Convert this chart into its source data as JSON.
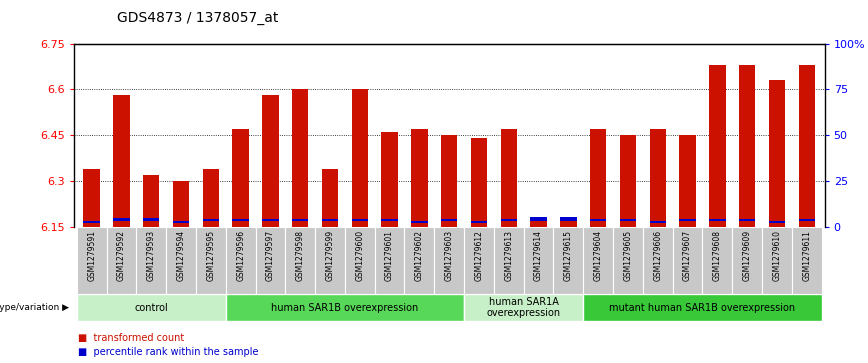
{
  "title": "GDS4873 / 1378057_at",
  "samples": [
    "GSM1279591",
    "GSM1279592",
    "GSM1279593",
    "GSM1279594",
    "GSM1279595",
    "GSM1279596",
    "GSM1279597",
    "GSM1279598",
    "GSM1279599",
    "GSM1279600",
    "GSM1279601",
    "GSM1279602",
    "GSM1279603",
    "GSM1279612",
    "GSM1279613",
    "GSM1279614",
    "GSM1279615",
    "GSM1279604",
    "GSM1279605",
    "GSM1279606",
    "GSM1279607",
    "GSM1279608",
    "GSM1279609",
    "GSM1279610",
    "GSM1279611"
  ],
  "red_values": [
    6.34,
    6.58,
    6.32,
    6.3,
    6.34,
    6.47,
    6.58,
    6.6,
    6.34,
    6.6,
    6.46,
    6.47,
    6.45,
    6.44,
    6.47,
    6.17,
    6.17,
    6.47,
    6.45,
    6.47,
    6.45,
    6.68,
    6.68,
    6.63,
    6.68
  ],
  "blue_heights": [
    0.008,
    0.008,
    0.008,
    0.008,
    0.008,
    0.008,
    0.008,
    0.008,
    0.008,
    0.008,
    0.008,
    0.008,
    0.008,
    0.008,
    0.008,
    0.015,
    0.015,
    0.008,
    0.008,
    0.008,
    0.008,
    0.008,
    0.008,
    0.008,
    0.008
  ],
  "blue_bottoms": [
    6.162,
    6.17,
    6.17,
    6.162,
    6.168,
    6.168,
    6.168,
    6.168,
    6.168,
    6.168,
    6.168,
    6.162,
    6.168,
    6.162,
    6.168,
    6.168,
    6.168,
    6.168,
    6.168,
    6.162,
    6.168,
    6.168,
    6.168,
    6.162,
    6.168
  ],
  "y_min": 6.15,
  "y_max": 6.75,
  "y_ticks_left": [
    6.15,
    6.3,
    6.45,
    6.6,
    6.75
  ],
  "y_ticks_right_labels": [
    "0",
    "25",
    "50",
    "75",
    "100%"
  ],
  "groups": [
    {
      "label": "control",
      "start": 0,
      "end": 5,
      "color": "#c8f0c8"
    },
    {
      "label": "human SAR1B overexpression",
      "start": 5,
      "end": 13,
      "color": "#58d858"
    },
    {
      "label": "human SAR1A\noverexpression",
      "start": 13,
      "end": 17,
      "color": "#c8f0c8"
    },
    {
      "label": "mutant human SAR1B overexpression",
      "start": 17,
      "end": 25,
      "color": "#38c838"
    }
  ],
  "bar_color_red": "#cc1100",
  "bar_color_blue": "#0000cc",
  "bar_width": 0.55,
  "xtick_bg": "#c8c8c8",
  "spine_color": "#000000"
}
